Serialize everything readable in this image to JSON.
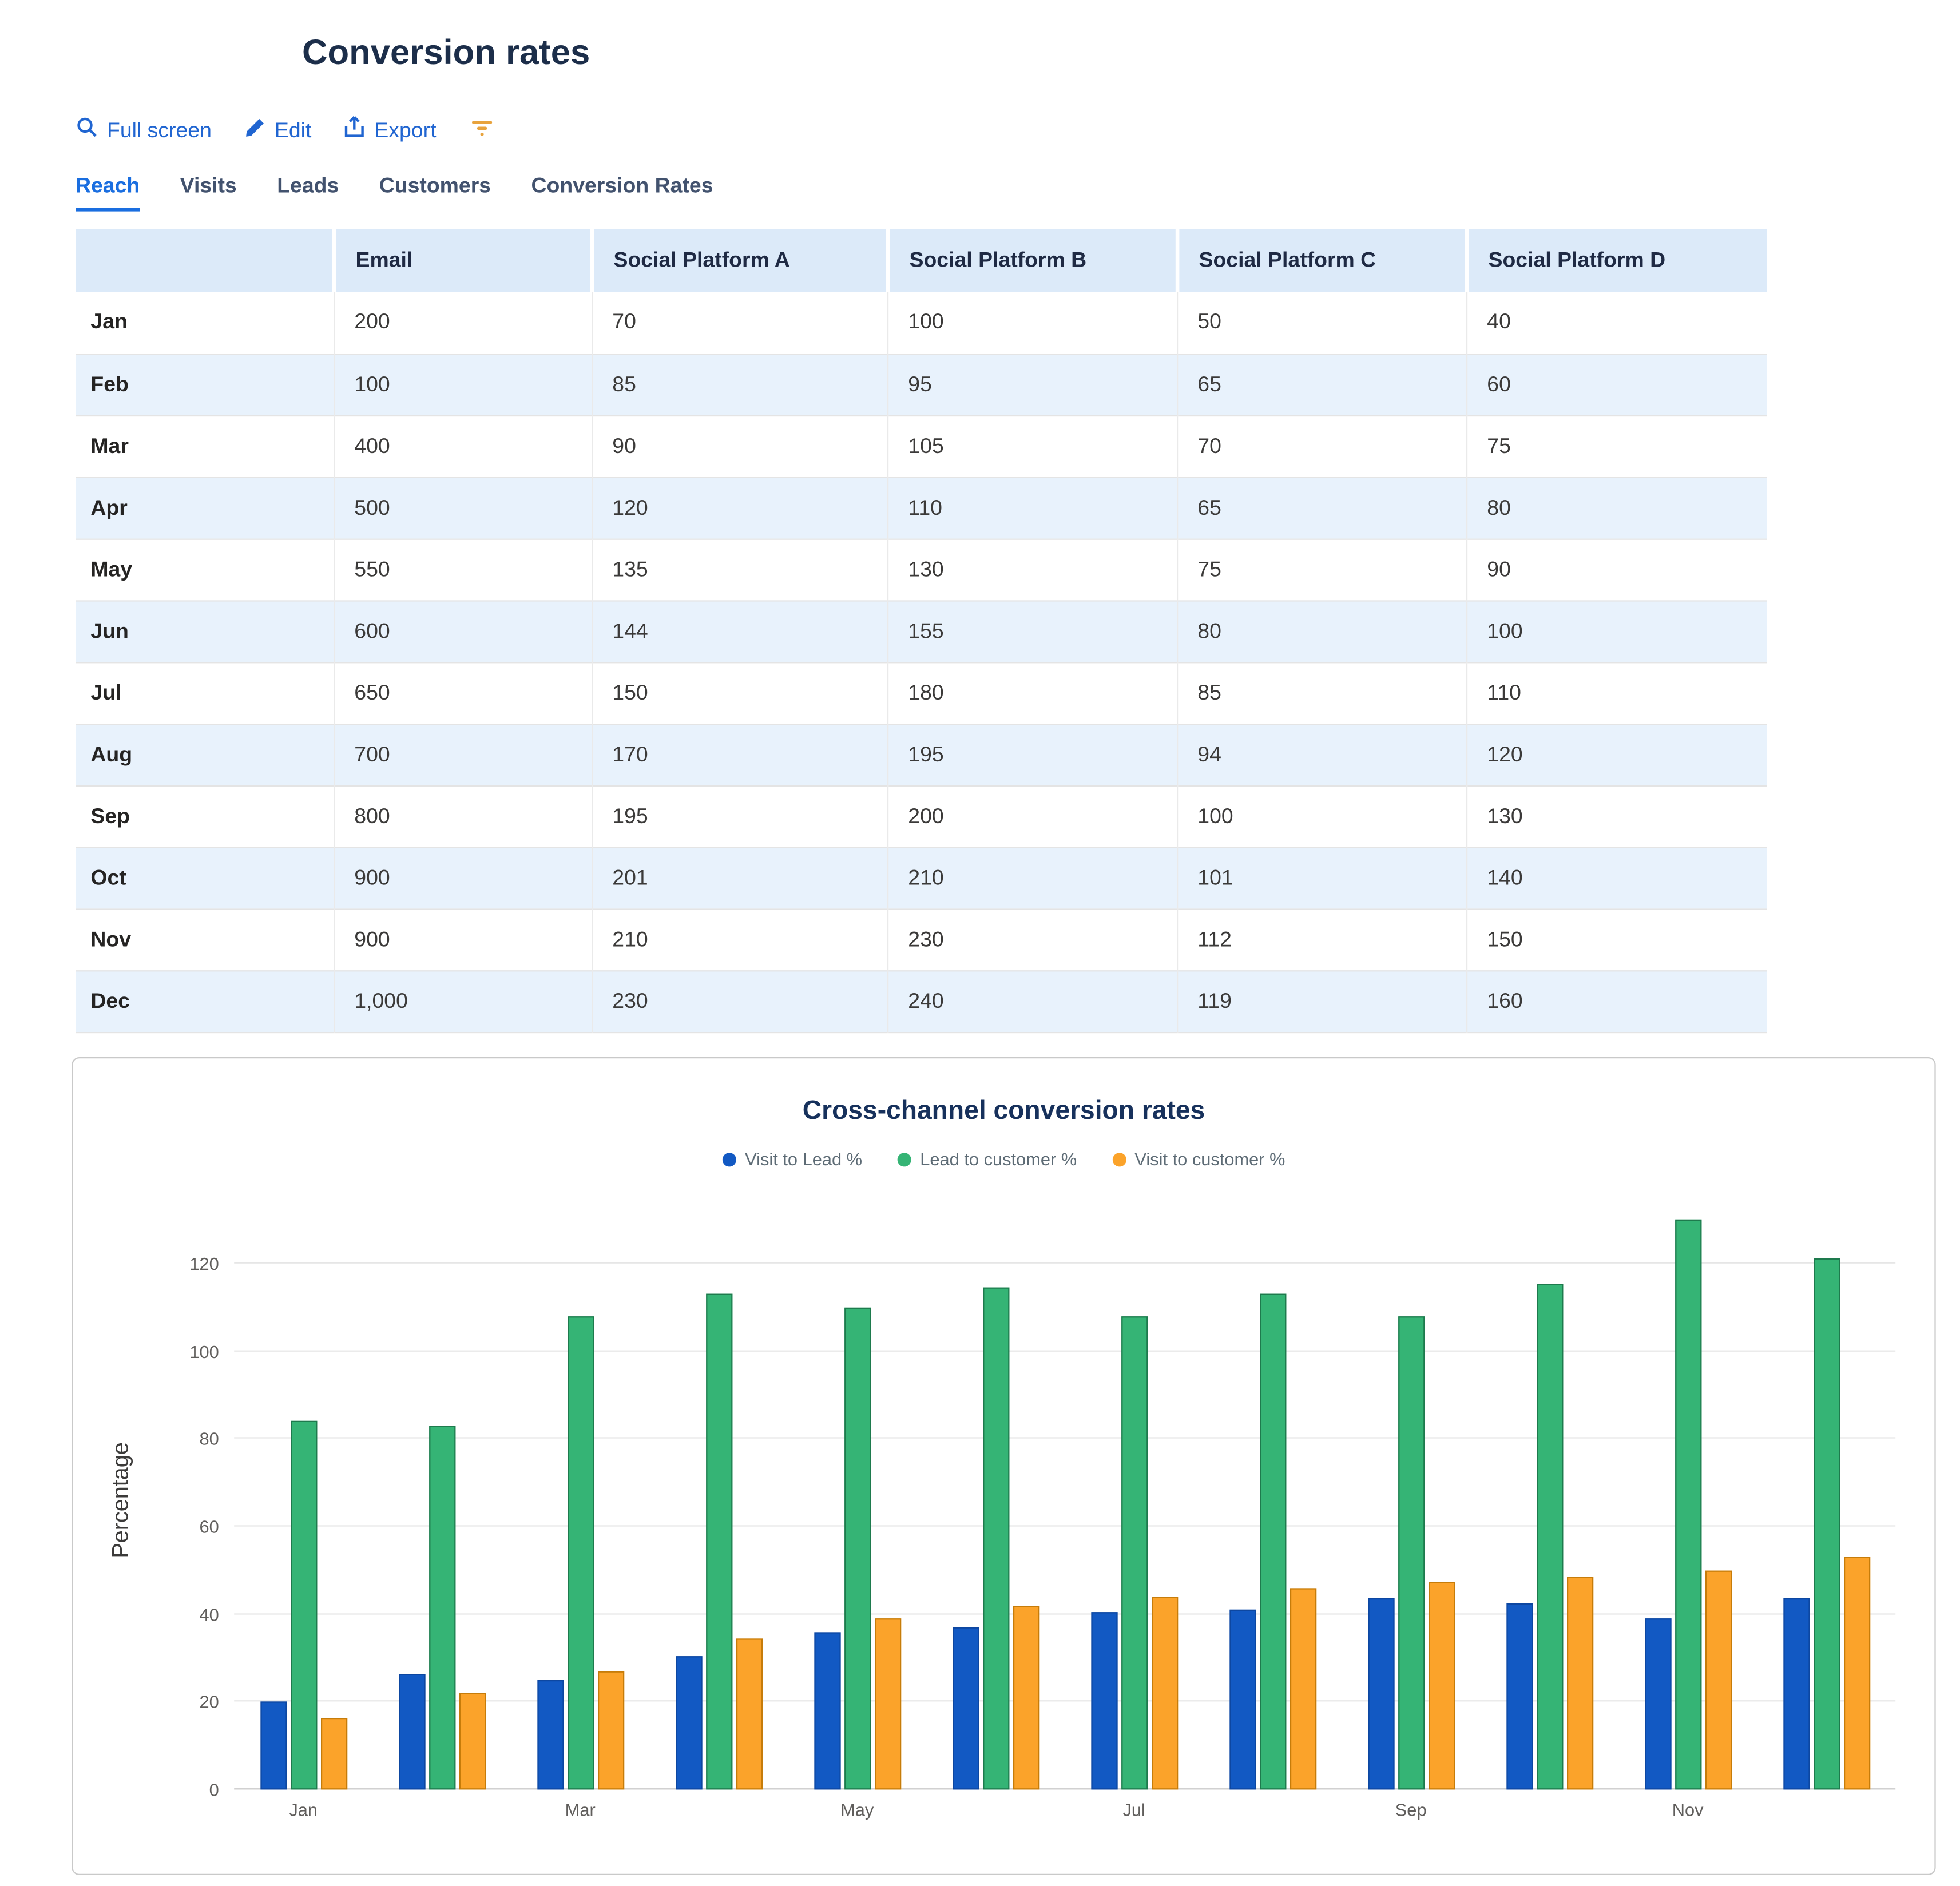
{
  "page": {
    "title": "Conversion rates"
  },
  "toolbar": {
    "full_screen": {
      "label": "Full screen",
      "icon": "magnifier-icon"
    },
    "edit": {
      "label": "Edit",
      "icon": "pencil-icon"
    },
    "export": {
      "label": "Export",
      "icon": "export-icon"
    },
    "filter": {
      "icon": "funnel-icon"
    },
    "accent_color": "#2065d1",
    "filter_color": "#e8a33d"
  },
  "tabs": {
    "items": [
      "Reach",
      "Visits",
      "Leads",
      "Customers",
      "Conversion Rates"
    ],
    "active": "Reach"
  },
  "table": {
    "columns": [
      "",
      "Email",
      "Social Platform A",
      "Social Platform B",
      "Social Platform C",
      "Social Platform D"
    ],
    "header_bg": "#dceaf9",
    "stripe_bg": "#e8f2fc",
    "rows": [
      {
        "label": "Jan",
        "values": [
          "200",
          "70",
          "100",
          "50",
          "40"
        ]
      },
      {
        "label": "Feb",
        "values": [
          "100",
          "85",
          "95",
          "65",
          "60"
        ]
      },
      {
        "label": "Mar",
        "values": [
          "400",
          "90",
          "105",
          "70",
          "75"
        ]
      },
      {
        "label": "Apr",
        "values": [
          "500",
          "120",
          "110",
          "65",
          "80"
        ]
      },
      {
        "label": "May",
        "values": [
          "550",
          "135",
          "130",
          "75",
          "90"
        ]
      },
      {
        "label": "Jun",
        "values": [
          "600",
          "144",
          "155",
          "80",
          "100"
        ]
      },
      {
        "label": "Jul",
        "values": [
          "650",
          "150",
          "180",
          "85",
          "110"
        ]
      },
      {
        "label": "Aug",
        "values": [
          "700",
          "170",
          "195",
          "94",
          "120"
        ]
      },
      {
        "label": "Sep",
        "values": [
          "800",
          "195",
          "200",
          "100",
          "130"
        ]
      },
      {
        "label": "Oct",
        "values": [
          "900",
          "201",
          "210",
          "101",
          "140"
        ]
      },
      {
        "label": "Nov",
        "values": [
          "900",
          "210",
          "230",
          "112",
          "150"
        ]
      },
      {
        "label": "Dec",
        "values": [
          "1,000",
          "230",
          "240",
          "119",
          "160"
        ]
      }
    ]
  },
  "chart_data": {
    "type": "bar",
    "title": "Cross-channel conversion rates",
    "xlabel": "",
    "ylabel": "Percentage",
    "categories": [
      "Jan",
      "Feb",
      "Mar",
      "Apr",
      "May",
      "Jun",
      "Jul",
      "Aug",
      "Sep",
      "Oct",
      "Nov",
      "Dec"
    ],
    "x_ticks_shown": [
      "Jan",
      "Mar",
      "May",
      "Jul",
      "Sep",
      "Nov"
    ],
    "yticks": [
      0,
      20,
      40,
      60,
      80,
      100,
      120
    ],
    "ylim": [
      0,
      132
    ],
    "grid": true,
    "legend_position": "top",
    "series": [
      {
        "name": "Visit to Lead %",
        "color": "#1259c3",
        "border": "#0d47a1",
        "values": [
          20,
          26.5,
          25,
          30.5,
          36,
          37,
          40.5,
          41,
          43.5,
          42.5,
          39,
          43.5
        ]
      },
      {
        "name": "Lead to customer %",
        "color": "#35b475",
        "border": "#1e7a4d",
        "values": [
          84,
          83,
          108,
          113,
          110,
          114.5,
          108,
          113,
          108,
          115.5,
          130,
          121
        ]
      },
      {
        "name": "Visit to customer %",
        "color": "#fba32a",
        "border": "#c67c0a",
        "values": [
          16.5,
          22,
          27,
          34.5,
          39,
          42,
          44,
          46,
          47.5,
          48.5,
          50,
          53
        ]
      }
    ]
  }
}
